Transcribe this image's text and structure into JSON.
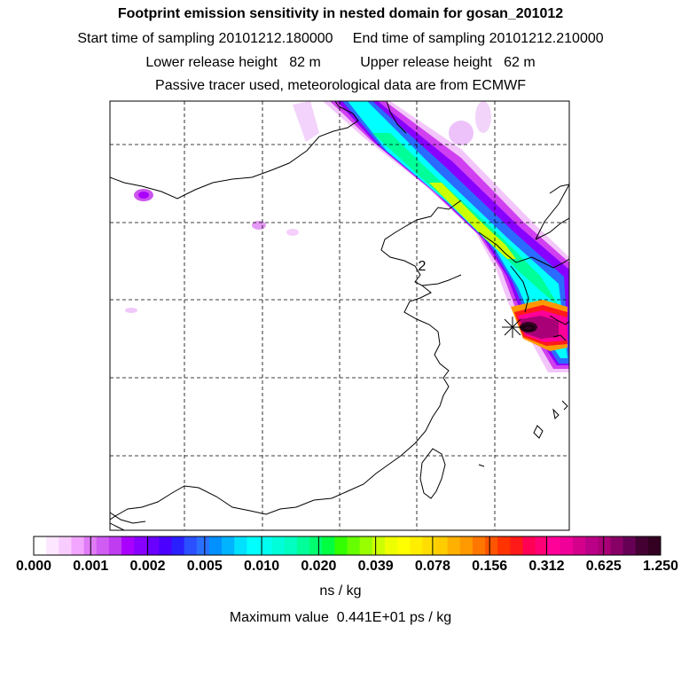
{
  "header": {
    "title": "Footprint emission sensitivity in nested domain for gosan_201012",
    "sampling_line": "Start time of sampling 20101212.180000     End time of sampling 20101212.210000",
    "release_line": "Lower release height   82 m          Upper release height   62 m",
    "tracer_line": "Passive tracer used, meteorological data are from ECMWF"
  },
  "map": {
    "site_marker": "star-marker",
    "contour_label": "2",
    "plume_colors": [
      "#ee00ee",
      "#aa00ff",
      "#4d4dff",
      "#0090ff",
      "#00ffff",
      "#00ff99",
      "#33ff00",
      "#ccff00",
      "#ffee00",
      "#ff9900",
      "#ff1a1a",
      "#ff0099",
      "#aa0077",
      "#330022"
    ]
  },
  "colorbar": {
    "labels": [
      "0.000",
      "0.001",
      "0.002",
      "0.005",
      "0.010",
      "0.020",
      "0.039",
      "0.078",
      "0.156",
      "0.312",
      "0.625",
      "1.250"
    ],
    "colors": [
      "#ffffff",
      "#fde6ff",
      "#f9ccff",
      "#f2a6ff",
      "#e07cf7",
      "#d05cf3",
      "#c03cf0",
      "#aa00ff",
      "#8800ff",
      "#6a00ff",
      "#4b00ff",
      "#2a20ff",
      "#2b50ff",
      "#2a70ff",
      "#0090ff",
      "#00b4ff",
      "#00e0ff",
      "#00ffff",
      "#00fff0",
      "#00ffd8",
      "#00ffc0",
      "#00ff99",
      "#00ff70",
      "#00ff40",
      "#33ff00",
      "#66ff00",
      "#99ff00",
      "#ccff00",
      "#eeff00",
      "#ffff00",
      "#ffee00",
      "#ffdd00",
      "#ffcc00",
      "#ffb000",
      "#ff9900",
      "#ff7700",
      "#ff5500",
      "#ff3300",
      "#ff1a1a",
      "#ff0055",
      "#ff0077",
      "#ff0099",
      "#ee0099",
      "#d4008c",
      "#bb0088",
      "#aa0077",
      "#880066",
      "#660055",
      "#440033",
      "#330022"
    ],
    "unit": "ns / kg",
    "max_value_text": "Maximum value  0.441E+01 ps / kg"
  }
}
